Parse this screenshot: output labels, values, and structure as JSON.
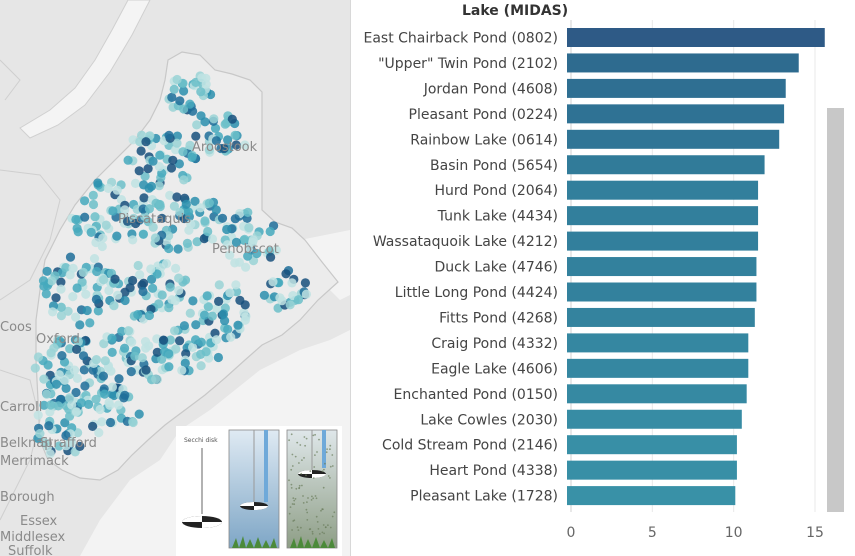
{
  "map": {
    "labels": [
      {
        "text": "Aroostook",
        "id": "aroostook"
      },
      {
        "text": "Piscataquis",
        "id": "piscataquis"
      },
      {
        "text": "Penobscot",
        "id": "penobscot"
      },
      {
        "text": "Coos",
        "id": "coos"
      },
      {
        "text": "Oxford",
        "id": "oxford"
      },
      {
        "text": "Carroll",
        "id": "carroll"
      },
      {
        "text": "Belknap",
        "id": "belknap"
      },
      {
        "text": "Merrimack",
        "id": "merrimack"
      },
      {
        "text": "Strafford",
        "id": "strafford"
      },
      {
        "text": "Borough",
        "id": "borough"
      },
      {
        "text": "Essex",
        "id": "essex"
      },
      {
        "text": "Middlesex",
        "id": "middlesex"
      },
      {
        "text": "Suffolk",
        "id": "suffolk"
      }
    ],
    "dot_colors": [
      "#bfe3e3",
      "#9ad3d6",
      "#6cc0c9",
      "#45a9bd",
      "#2b8fae",
      "#1f6f9a",
      "#17507c"
    ]
  },
  "inset": {
    "secchi_label": "Secchi disk"
  },
  "chart_data": {
    "type": "bar",
    "orientation": "horizontal",
    "column_header": "Lake (MIDAS)",
    "categories": [
      "East Chairback Pond (0802)",
      "\"Upper\" Twin Pond (2102)",
      "Jordan Pond (4608)",
      "Pleasant Pond (0224)",
      "Rainbow Lake (0614)",
      "Basin Pond (5654)",
      "Hurd Pond (2064)",
      "Tunk Lake (4434)",
      "Wassataquoik Lake (4212)",
      "Duck Lake (4746)",
      "Little Long Pond (4424)",
      "Fitts Pond (4268)",
      "Craig Pond (4332)",
      "Eagle Lake (4606)",
      "Enchanted Pond (0150)",
      "Lake Cowles (2030)",
      "Cold Stream Pond (2146)",
      "Heart Pond (4338)",
      "Pleasant Lake (1728)"
    ],
    "values": [
      15.6,
      14.0,
      13.2,
      13.1,
      12.8,
      11.9,
      11.5,
      11.5,
      11.5,
      11.4,
      11.4,
      11.3,
      10.9,
      10.9,
      10.8,
      10.5,
      10.2,
      10.2,
      10.1
    ],
    "colors": [
      "#2e5a86",
      "#2e6b8f",
      "#2f6f92",
      "#2f7294",
      "#307596",
      "#317b99",
      "#327f9c",
      "#327f9c",
      "#327f9c",
      "#33819d",
      "#33819d",
      "#34839e",
      "#3587a1",
      "#3587a1",
      "#3689a2",
      "#378ca4",
      "#388fa6",
      "#388fa6",
      "#3991a7"
    ],
    "xlim": [
      0,
      16
    ],
    "xticks": [
      0,
      5,
      10,
      15
    ],
    "grid": true
  }
}
